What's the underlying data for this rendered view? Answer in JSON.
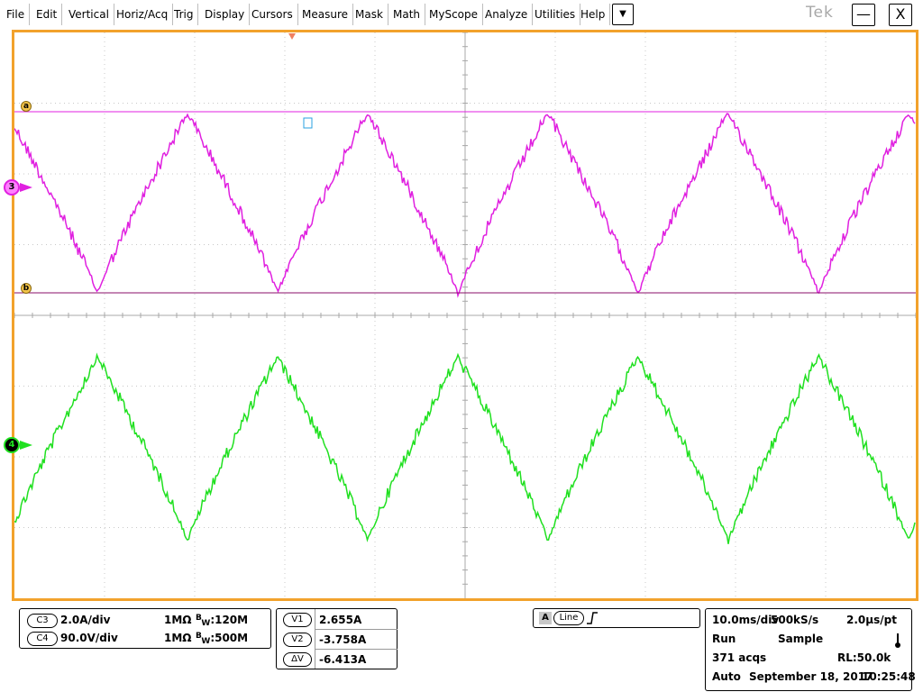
{
  "menu": {
    "items": [
      "File",
      "Edit",
      "Vertical",
      "Horiz/Acq",
      "Trig",
      "Display",
      "Cursors",
      "Measure",
      "Mask",
      "Math",
      "MyScope",
      "Analyze",
      "Utilities",
      "Help"
    ],
    "dropdown_icon": "▼",
    "brand": "Tek",
    "minimize_icon": "—",
    "close_icon": "X"
  },
  "screen": {
    "border_color": "#f2a22c",
    "ch3_color": "#e020e0",
    "ch4_color": "#20e020",
    "ch3_marker": "3",
    "ch4_marker": "4",
    "cursor_a": "a",
    "cursor_b": "b"
  },
  "channels": [
    {
      "chip": "C3",
      "scale": "2.0A/div",
      "impedance": "1MΩ",
      "bw_prefix": "B",
      "bw_sub": "W",
      "bw": ":120M"
    },
    {
      "chip": "C4",
      "scale": "90.0V/div",
      "impedance": "1MΩ",
      "bw_prefix": "B",
      "bw_sub": "W",
      "bw": ":500M"
    }
  ],
  "cursors": [
    {
      "label": "V1",
      "value": "2.655A"
    },
    {
      "label": "V2",
      "value": "-3.758A"
    },
    {
      "label": "ΔV",
      "value": "-6.413A"
    }
  ],
  "trigger": {
    "mode": "A",
    "source": "Line",
    "slope_icon": "rising-edge"
  },
  "acquisition": {
    "timebase": "10.0ms/div",
    "sample_rate": "500kS/s",
    "resolution": "2.0μs/pt",
    "state": "Run",
    "mode": "Sample",
    "acqs": "371 acqs",
    "record_length": "RL:50.0k",
    "trigger_mode": "Auto",
    "date": "September 18, 2017",
    "time": "10:25:48"
  }
}
